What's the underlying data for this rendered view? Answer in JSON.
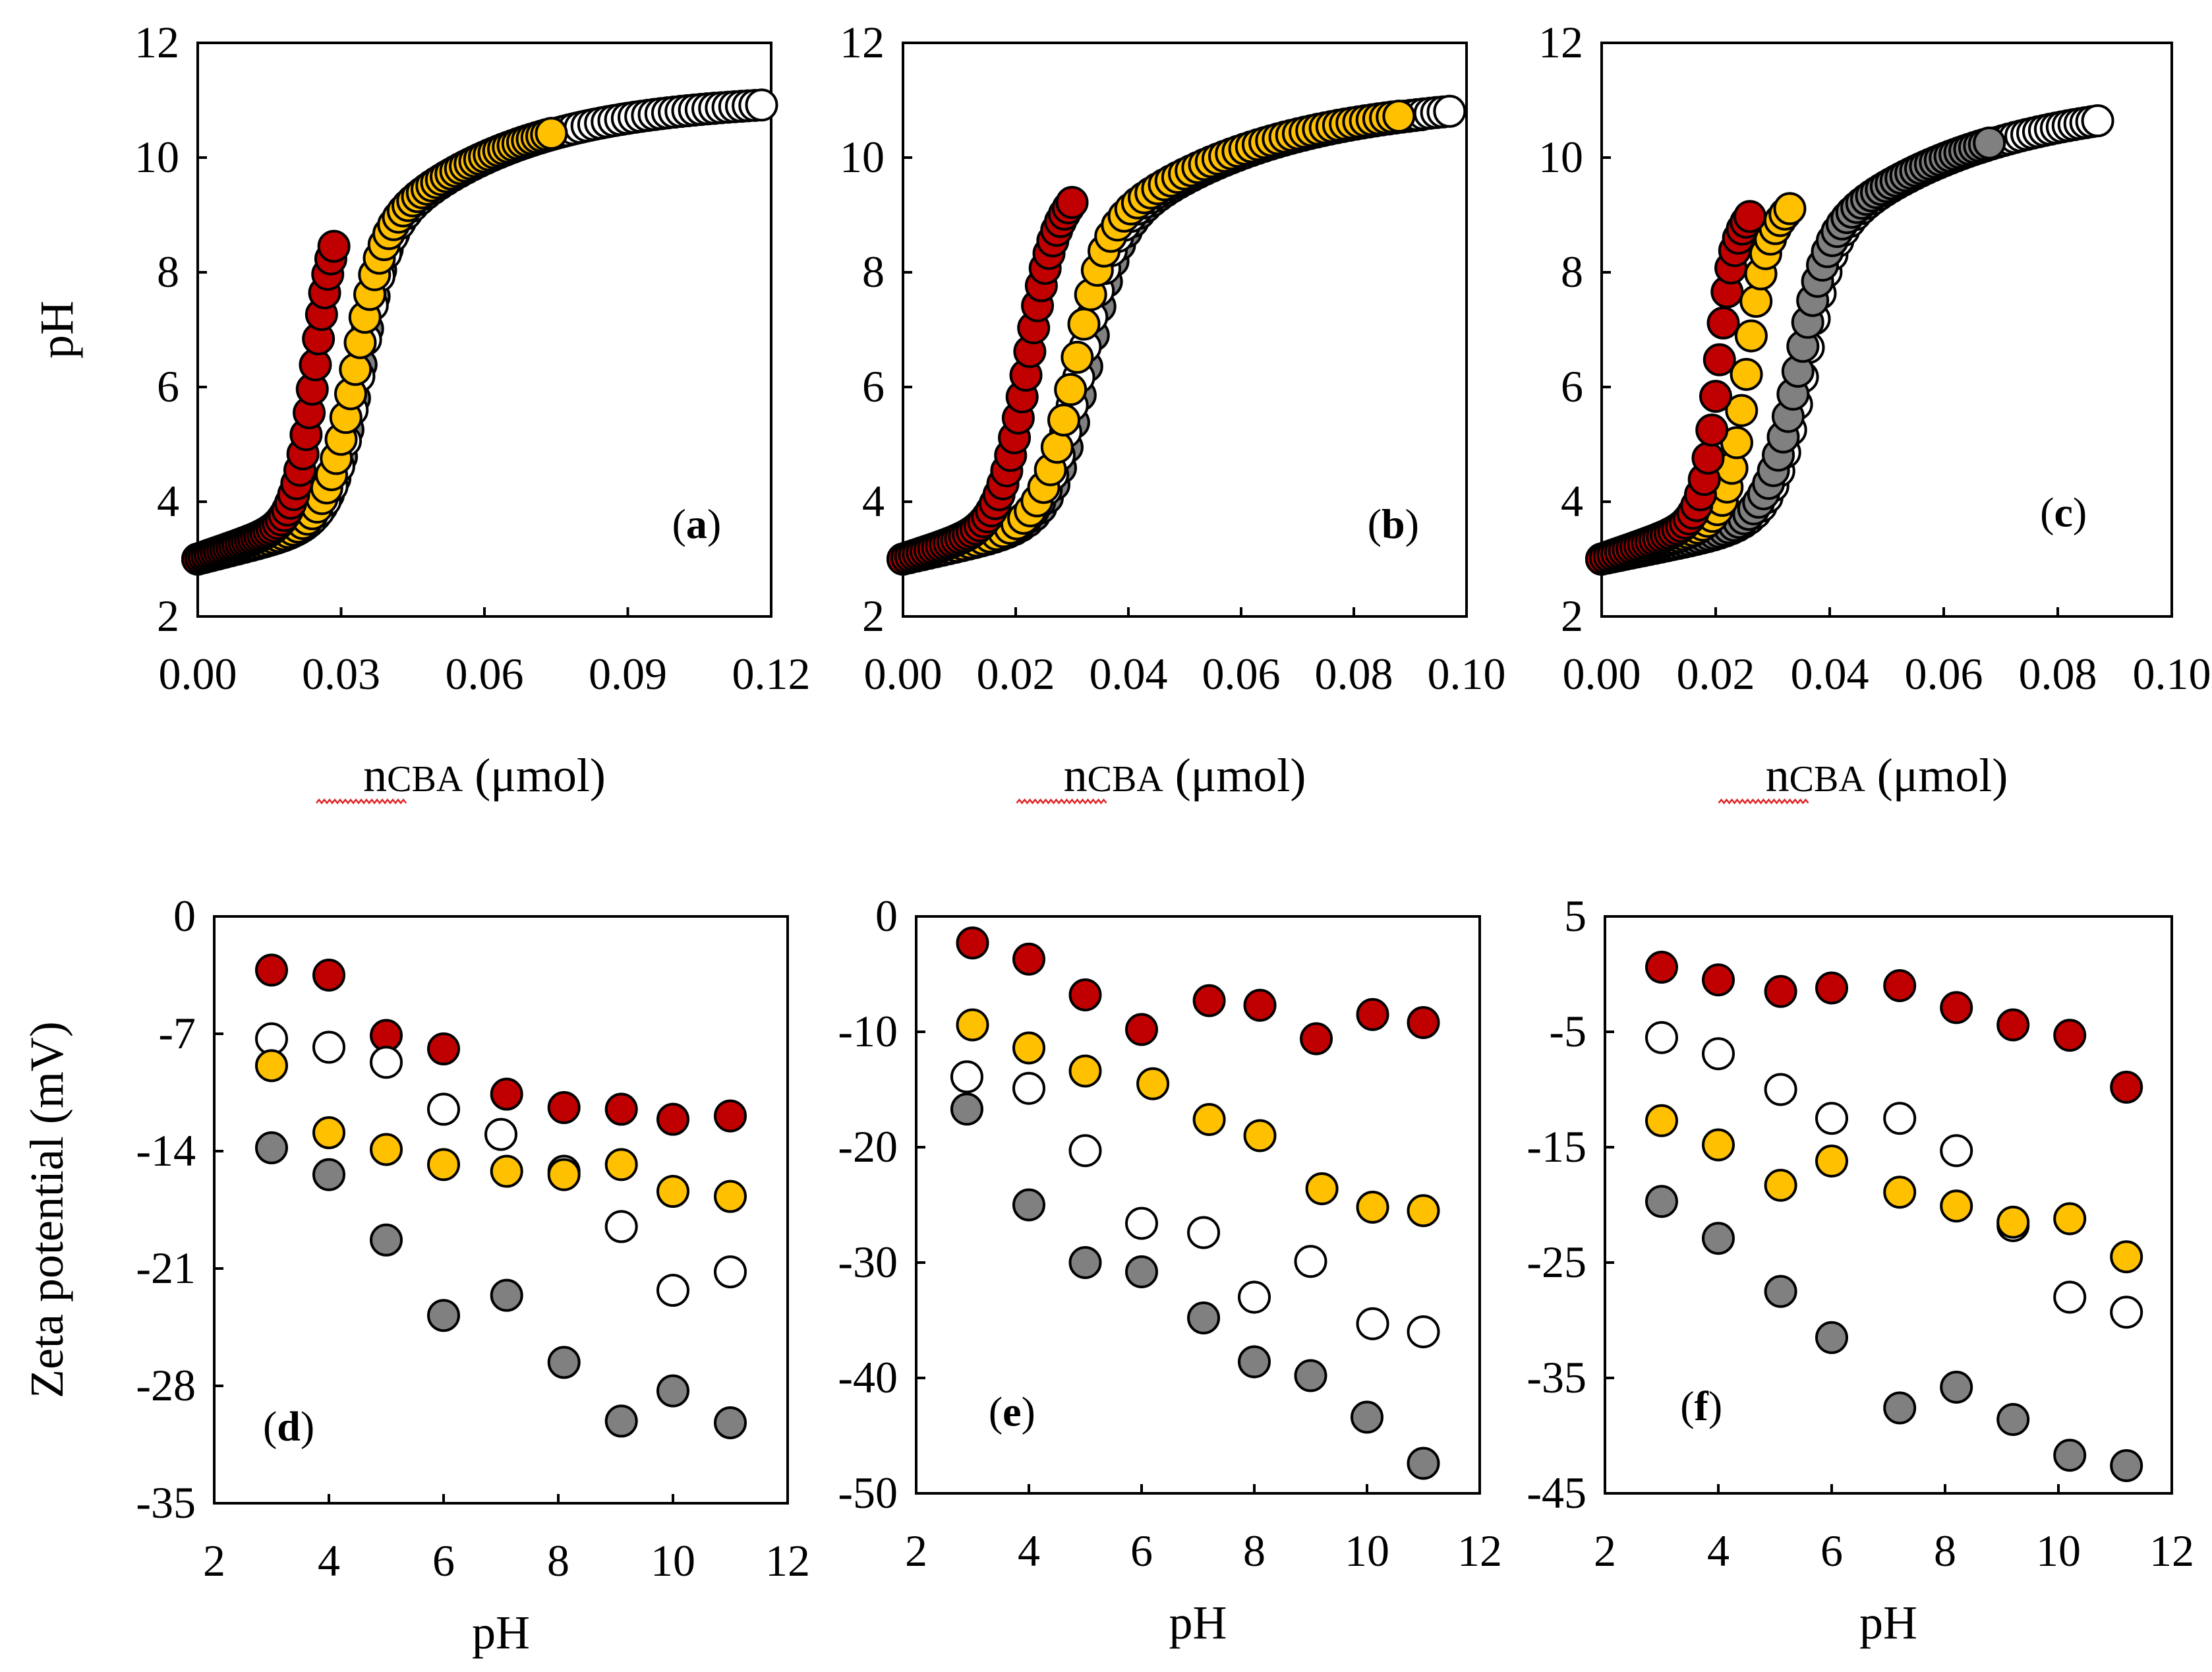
{
  "series": [
    {
      "name": "red",
      "color": "#c00000"
    },
    {
      "name": "yellow",
      "color": "#ffc000"
    },
    {
      "name": "white",
      "color": "#ffffff"
    },
    {
      "name": "gray",
      "color": "#808080"
    }
  ],
  "chart_data": [
    {
      "id": "a",
      "type": "scatter",
      "label": "a",
      "xlabel_main": "n",
      "xlabel_sub": "CBA",
      "xlabel_unit": " (μmol)",
      "ylabel": "pH",
      "xlim": [
        0,
        0.12
      ],
      "ylim": [
        2,
        12
      ],
      "xticks": [
        "0.00",
        "0.03",
        "0.06",
        "0.09",
        "0.12"
      ],
      "yticks": [
        "2",
        "4",
        "6",
        "8",
        "10",
        "12"
      ],
      "curves": [
        {
          "series": "gray",
          "n": 80,
          "v0": 0.034,
          "k": 0.0028,
          "vmax": 0.108,
          "pKa": 3.5,
          "b": 0.0185,
          "shift": 0.0012
        },
        {
          "series": "white",
          "n": 85,
          "v0": 0.034,
          "k": 0.0028,
          "vmax": 0.118,
          "pKa": 3.5,
          "b": 0.0185,
          "shift": 0.0018
        },
        {
          "series": "yellow",
          "n": 75,
          "v0": 0.033,
          "k": 0.0028,
          "vmax": 0.074,
          "pKa": 3.5,
          "b": 0.0185,
          "shift": 0.0
        },
        {
          "series": "red",
          "n": 45,
          "v0": 0.0245,
          "k": 0.0018,
          "vmax": 0.0285,
          "pKa": 3.4,
          "b": 0.0135,
          "shift": 0.0
        }
      ]
    },
    {
      "id": "b",
      "type": "scatter",
      "label": "b",
      "xlabel_main": "n",
      "xlabel_sub": "CBA",
      "xlabel_unit": " (μmol)",
      "ylabel": "",
      "xlim": [
        0,
        0.1
      ],
      "ylim": [
        2,
        12
      ],
      "xticks": [
        "0.00",
        "0.02",
        "0.04",
        "0.06",
        "0.08",
        "0.10"
      ],
      "yticks": [
        "2",
        "4",
        "6",
        "8",
        "10",
        "12"
      ],
      "curves": [
        {
          "series": "gray",
          "n": 80,
          "v0": 0.0325,
          "k": 0.0028,
          "vmax": 0.092,
          "pKa": 3.5,
          "b": 0.018,
          "shift": 0.0018
        },
        {
          "series": "white",
          "n": 85,
          "v0": 0.0315,
          "k": 0.0028,
          "vmax": 0.097,
          "pKa": 3.5,
          "b": 0.018,
          "shift": 0.0028
        },
        {
          "series": "yellow",
          "n": 75,
          "v0": 0.0305,
          "k": 0.0026,
          "vmax": 0.088,
          "pKa": 3.5,
          "b": 0.018,
          "shift": 0.0
        },
        {
          "series": "red",
          "n": 45,
          "v0": 0.022,
          "k": 0.0022,
          "vmax": 0.03,
          "pKa": 3.3,
          "b": 0.0125,
          "shift": 0.0
        }
      ]
    },
    {
      "id": "c",
      "type": "scatter",
      "label": "c",
      "xlabel_main": "n",
      "xlabel_sub": "CBA",
      "xlabel_unit": " (μmol)",
      "ylabel": "",
      "xlim": [
        0,
        0.1
      ],
      "ylim": [
        2,
        12
      ],
      "xticks": [
        "0.00",
        "0.02",
        "0.04",
        "0.06",
        "0.08",
        "0.10"
      ],
      "yticks": [
        "2",
        "4",
        "6",
        "8",
        "10",
        "12"
      ],
      "curves": [
        {
          "series": "white",
          "n": 85,
          "v0": 0.0355,
          "k": 0.0025,
          "vmax": 0.087,
          "pKa": 3.5,
          "b": 0.018,
          "shift": 0.0
        },
        {
          "series": "gray",
          "n": 80,
          "v0": 0.0345,
          "k": 0.0025,
          "vmax": 0.068,
          "pKa": 3.5,
          "b": 0.018,
          "shift": 0.0
        },
        {
          "series": "yellow",
          "n": 40,
          "v0": 0.0255,
          "k": 0.0015,
          "vmax": 0.033,
          "pKa": 3.3,
          "b": 0.014,
          "shift": 0.0
        },
        {
          "series": "red",
          "n": 40,
          "v0": 0.0205,
          "k": 0.0012,
          "vmax": 0.026,
          "pKa": 3.3,
          "b": 0.0125,
          "shift": 0.0
        }
      ]
    },
    {
      "id": "d",
      "type": "scatter",
      "label": "d",
      "xlabel": "pH",
      "ylabel": "Zeta potential (mV)",
      "xlim": [
        2,
        12
      ],
      "ylim": [
        -35,
        0
      ],
      "xticks": [
        "2",
        "4",
        "6",
        "8",
        "10",
        "12"
      ],
      "yticks": [
        "-35",
        "-28",
        "-21",
        "-14",
        "-7",
        "0"
      ],
      "points": [
        {
          "series": "red",
          "x": [
            3,
            4,
            5,
            6,
            7.1,
            8.1,
            9.1,
            10,
            11
          ],
          "y": [
            -3.2,
            -3.5,
            -7.1,
            -7.9,
            -10.6,
            -11.4,
            -11.5,
            -12.1,
            -11.9
          ]
        },
        {
          "series": "white",
          "x": [
            3,
            4,
            5,
            6,
            7,
            8.1,
            9.1,
            10,
            11
          ],
          "y": [
            -7.3,
            -7.8,
            -8.7,
            -11.5,
            -13.0,
            -15.2,
            -18.5,
            -22.3,
            -21.2
          ]
        },
        {
          "series": "yellow",
          "x": [
            3,
            4,
            5,
            6,
            7.1,
            8.1,
            9.1,
            10,
            11
          ],
          "y": [
            -8.9,
            -12.9,
            -13.9,
            -14.8,
            -15.2,
            -15.4,
            -14.8,
            -16.4,
            -16.7
          ]
        },
        {
          "series": "gray",
          "x": [
            3,
            4,
            5,
            6,
            7.1,
            8.1,
            9.1,
            10,
            11
          ],
          "y": [
            -13.8,
            -15.4,
            -19.3,
            -23.8,
            -22.6,
            -26.6,
            -30.1,
            -28.3,
            -30.2
          ]
        }
      ]
    },
    {
      "id": "e",
      "type": "scatter",
      "label": "e",
      "xlabel": "pH",
      "ylabel": "",
      "xlim": [
        2,
        12
      ],
      "ylim": [
        -50,
        0
      ],
      "xticks": [
        "2",
        "4",
        "6",
        "8",
        "10",
        "12"
      ],
      "yticks": [
        "-50",
        "-40",
        "-30",
        "-20",
        "-10",
        "0"
      ],
      "points": [
        {
          "series": "red",
          "x": [
            3,
            4,
            5,
            6,
            7.2,
            8.1,
            9.1,
            10.1,
            11
          ],
          "y": [
            -2.3,
            -3.7,
            -6.8,
            -9.8,
            -7.3,
            -7.7,
            -10.6,
            -8.5,
            -9.2
          ]
        },
        {
          "series": "yellow",
          "x": [
            3,
            4,
            5,
            6.2,
            7.2,
            8.1,
            9.2,
            10.1,
            11
          ],
          "y": [
            -9.4,
            -11.4,
            -13.4,
            -14.5,
            -17.6,
            -19.0,
            -23.6,
            -25.2,
            -25.5
          ]
        },
        {
          "series": "white",
          "x": [
            2.9,
            4,
            5,
            6,
            7.1,
            8,
            9,
            10.1,
            11
          ],
          "y": [
            -13.9,
            -14.9,
            -20.3,
            -26.6,
            -27.4,
            -33.0,
            -29.9,
            -35.3,
            -36.0
          ]
        },
        {
          "series": "gray",
          "x": [
            2.9,
            4,
            5,
            6,
            7.1,
            8,
            9,
            10,
            11
          ],
          "y": [
            -16.7,
            -25.0,
            -30.0,
            -30.8,
            -34.8,
            -38.6,
            -39.8,
            -43.4,
            -47.4
          ]
        }
      ]
    },
    {
      "id": "f",
      "type": "scatter",
      "label": "f",
      "xlabel": "pH",
      "ylabel": "",
      "xlim": [
        2,
        12
      ],
      "ylim": [
        -45,
        5
      ],
      "xticks": [
        "2",
        "4",
        "6",
        "8",
        "10",
        "12"
      ],
      "yticks": [
        "-45",
        "-35",
        "-25",
        "-15",
        "-5",
        "5"
      ],
      "points": [
        {
          "series": "red",
          "x": [
            3,
            4,
            5.1,
            6,
            7.2,
            8.2,
            9.2,
            10.2,
            11.2
          ],
          "y": [
            0.6,
            -0.5,
            -1.5,
            -1.2,
            -1.0,
            -2.9,
            -4.4,
            -5.3,
            -9.8
          ]
        },
        {
          "series": "white",
          "x": [
            3,
            4,
            5.1,
            6,
            7.2,
            8.2,
            9.2,
            10.2,
            11.2
          ],
          "y": [
            -5.5,
            -6.9,
            -10.0,
            -12.5,
            -12.5,
            -15.3,
            -21.8,
            -28.0,
            -29.3
          ]
        },
        {
          "series": "yellow",
          "x": [
            3,
            4,
            5.1,
            6,
            7.2,
            8.2,
            9.2,
            10.2,
            11.2
          ],
          "y": [
            -12.7,
            -14.8,
            -18.3,
            -16.2,
            -18.9,
            -20.1,
            -21.5,
            -21.2,
            -24.5
          ]
        },
        {
          "series": "gray",
          "x": [
            3,
            4,
            5.1,
            6,
            7.2,
            8.2,
            9.2,
            10.2,
            11.2
          ],
          "y": [
            -19.7,
            -22.9,
            -27.5,
            -31.5,
            -37.6,
            -35.8,
            -38.6,
            -41.7,
            -42.6
          ]
        }
      ]
    }
  ]
}
